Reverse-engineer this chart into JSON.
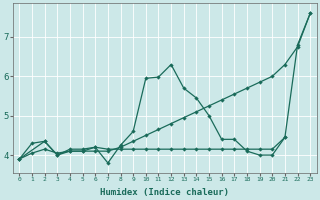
{
  "xlabel": "Humidex (Indice chaleur)",
  "bg_color": "#cce8e8",
  "grid_color": "#ffffff",
  "line_color": "#1a6b5a",
  "xlim": [
    -0.5,
    23.5
  ],
  "ylim": [
    3.55,
    7.85
  ],
  "yticks": [
    4,
    5,
    6,
    7
  ],
  "xticks": [
    0,
    1,
    2,
    3,
    4,
    5,
    6,
    7,
    8,
    9,
    10,
    11,
    12,
    13,
    14,
    15,
    16,
    17,
    18,
    19,
    20,
    21,
    22,
    23
  ],
  "line1_x": [
    0,
    1,
    2,
    3,
    4,
    5,
    6,
    7,
    8,
    9,
    10,
    11,
    12,
    13,
    14,
    15,
    16,
    17,
    18,
    19,
    20,
    21,
    22,
    23
  ],
  "line1_y": [
    3.9,
    4.05,
    4.15,
    4.05,
    4.1,
    4.1,
    4.1,
    4.1,
    4.2,
    4.35,
    4.5,
    4.65,
    4.8,
    4.95,
    5.1,
    5.25,
    5.4,
    5.55,
    5.7,
    5.85,
    6.0,
    6.3,
    6.75,
    7.6
  ],
  "line2_x": [
    0,
    1,
    2,
    3,
    4,
    5,
    6,
    7,
    8,
    9,
    10,
    11,
    12,
    13,
    14,
    15,
    16,
    17,
    18,
    19,
    20,
    21,
    22,
    23
  ],
  "line2_y": [
    3.9,
    4.3,
    4.35,
    4.0,
    4.15,
    4.15,
    4.2,
    3.8,
    4.25,
    4.6,
    5.95,
    5.98,
    6.3,
    5.7,
    5.45,
    5.0,
    4.4,
    4.4,
    4.1,
    4.0,
    4.0,
    4.45,
    6.8,
    7.6
  ],
  "line3_x": [
    0,
    2,
    3,
    4,
    5,
    6,
    7,
    8,
    9,
    10,
    11,
    12,
    13,
    14,
    15,
    16,
    17,
    18,
    19,
    20,
    21
  ],
  "line3_y": [
    3.9,
    4.35,
    4.0,
    4.1,
    4.1,
    4.2,
    4.15,
    4.15,
    4.15,
    4.15,
    4.15,
    4.15,
    4.15,
    4.15,
    4.15,
    4.15,
    4.15,
    4.15,
    4.15,
    4.15,
    4.45
  ]
}
